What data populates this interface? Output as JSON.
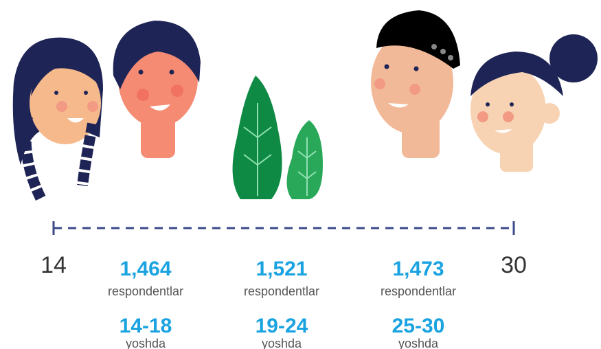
{
  "scale": {
    "start": "14",
    "end": "30"
  },
  "groups": [
    {
      "count": "1,464",
      "count_label": "respondentlar",
      "age": "14-18",
      "age_label": "yoshda"
    },
    {
      "count": "1,521",
      "count_label": "respondentlar",
      "age": "19-24",
      "age_label": "yoshda"
    },
    {
      "count": "1,473",
      "count_label": "respondentlar",
      "age": "25-30",
      "age_label": "yoshda"
    }
  ]
}
